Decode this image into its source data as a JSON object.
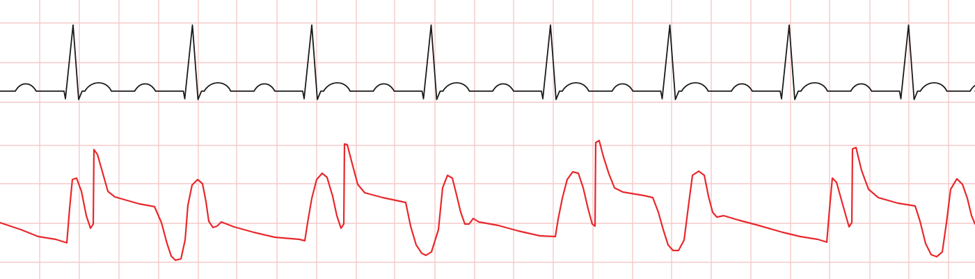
{
  "rhythm_strip": {
    "grid_color": "#f6c9c9",
    "background_color": "#ffffff",
    "traces": [
      {
        "name": "reference-ecg-trace",
        "color": "#1a1a1a"
      },
      {
        "name": "abnormal-ecg-trace",
        "color": "#e8272b"
      }
    ]
  }
}
